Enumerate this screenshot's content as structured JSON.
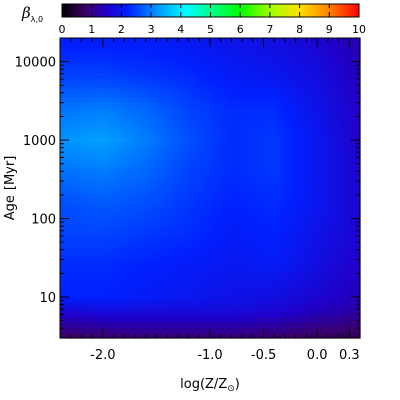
{
  "chart_data": {
    "type": "heatmap",
    "colorbar": {
      "title_symbol": "β",
      "title_subscript": "λ,0",
      "range": [
        0,
        10
      ],
      "ticks": [
        "0",
        "1",
        "2",
        "3",
        "4",
        "5",
        "6",
        "7",
        "8",
        "9",
        "10"
      ],
      "colormap": "rainbow (black-purple-blue-cyan-green-yellow-red)"
    },
    "xlabel": {
      "main": "log(Z/Z",
      "sub": "⊙",
      "close": ")"
    },
    "ylabel": {
      "main": "Age",
      "unit": "[Myr]"
    },
    "x_range": [
      -2.4,
      0.4
    ],
    "x_ticks": [
      {
        "value": -2.0,
        "label": "-2.0"
      },
      {
        "value": -1.0,
        "label": "-1.0"
      },
      {
        "value": -0.5,
        "label": "-0.5"
      },
      {
        "value": 0.0,
        "label": "0.0"
      },
      {
        "value": 0.3,
        "label": "0.3"
      }
    ],
    "y_scale": "log",
    "y_range": [
      3,
      20000
    ],
    "y_ticks": [
      {
        "value": 10,
        "label": "10"
      },
      {
        "value": 100,
        "label": "100"
      },
      {
        "value": 1000,
        "label": "1000"
      },
      {
        "value": 10000,
        "label": "10000"
      }
    ],
    "z_grid": {
      "x": [
        -2.4,
        -2.0,
        -1.6,
        -1.2,
        -0.8,
        -0.4,
        0.0,
        0.4
      ],
      "log_age": [
        0.48,
        0.8,
        1.0,
        1.4,
        1.8,
        2.2,
        2.6,
        3.0,
        3.4,
        3.8,
        4.3
      ],
      "values": [
        [
          0.7,
          0.8,
          0.9,
          0.9,
          0.9,
          0.8,
          0.7,
          0.6
        ],
        [
          1.6,
          1.7,
          1.7,
          1.7,
          1.7,
          1.6,
          1.4,
          1.2
        ],
        [
          2.2,
          2.2,
          2.1,
          2.0,
          1.9,
          1.8,
          1.6,
          1.4
        ],
        [
          2.3,
          2.3,
          2.2,
          2.1,
          2.0,
          2.1,
          1.8,
          1.5
        ],
        [
          2.5,
          2.5,
          2.4,
          2.3,
          2.1,
          2.2,
          1.9,
          1.6
        ],
        [
          2.6,
          2.7,
          2.6,
          2.4,
          2.2,
          2.3,
          2.0,
          1.6
        ],
        [
          2.9,
          3.0,
          2.8,
          2.5,
          2.3,
          2.4,
          2.0,
          1.6
        ],
        [
          3.2,
          3.3,
          3.0,
          2.6,
          2.3,
          2.4,
          2.0,
          1.5
        ],
        [
          2.9,
          3.0,
          2.8,
          2.5,
          2.3,
          2.3,
          1.9,
          1.5
        ],
        [
          2.5,
          2.5,
          2.4,
          2.3,
          2.1,
          2.0,
          1.8,
          1.4
        ],
        [
          2.1,
          2.1,
          2.1,
          2.0,
          1.9,
          1.8,
          1.6,
          1.3
        ]
      ]
    }
  }
}
